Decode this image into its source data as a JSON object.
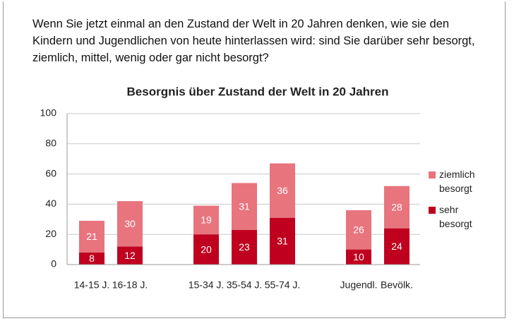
{
  "question": "Wenn Sie jetzt einmal an den Zustand der Welt in 20 Jahren denken, wie sie den Kindern und Jugendlichen von heute hinterlassen wird: sind Sie darüber sehr besorgt, ziemlich, mittel, wenig oder gar nicht besorgt?",
  "chart_data": {
    "type": "stacked_bar",
    "title": "Besorgnis über Zustand der Welt in 20 Jahren",
    "categories": [
      "14-15 J.",
      "16-18 J.",
      null,
      "15-34 J.",
      "35-54 J.",
      "55-74 J.",
      null,
      "Jugendl.",
      "Bevölk."
    ],
    "series": [
      {
        "name": "sehr besorgt",
        "color": "#c0001f",
        "values": [
          8,
          12,
          null,
          20,
          23,
          31,
          null,
          10,
          24
        ]
      },
      {
        "name": "ziemlich besorgt",
        "color": "#e8747e",
        "values": [
          21,
          30,
          null,
          19,
          31,
          36,
          null,
          26,
          28
        ]
      }
    ],
    "ylim": [
      0,
      100
    ],
    "yticks": [
      0,
      20,
      40,
      60,
      80,
      100
    ],
    "grid": true,
    "legend": "right"
  }
}
